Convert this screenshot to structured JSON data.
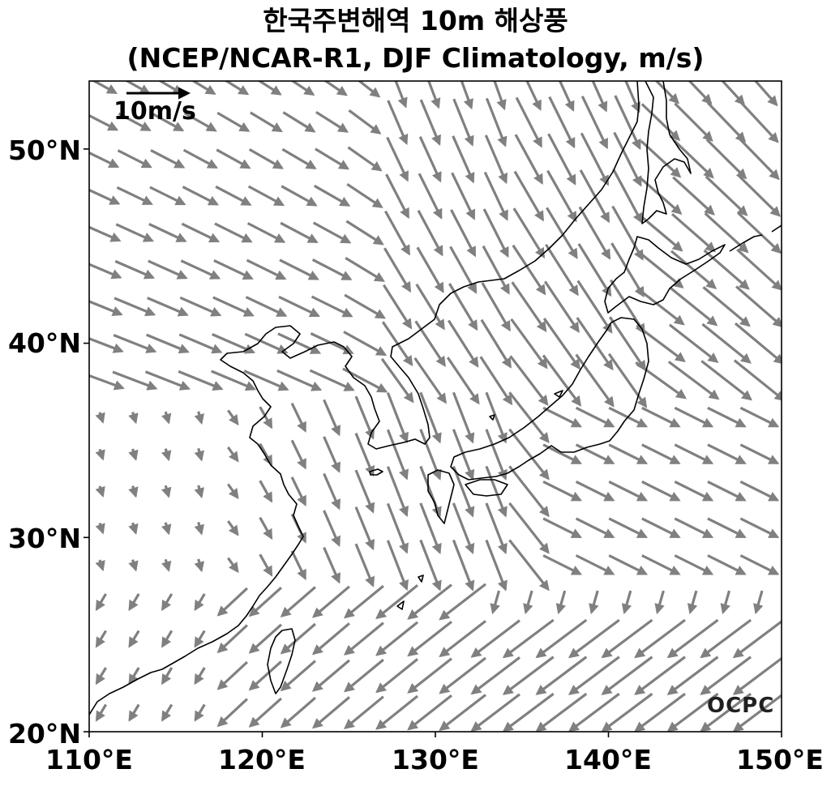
{
  "title": {
    "line1": "한국주변해역 10m 해상풍",
    "line2": "(NCEP/NCAR-R1, DJF Climatology, m/s)"
  },
  "axes": {
    "lon_min": 110,
    "lon_max": 150,
    "lat_min": 20,
    "lat_max": 53.5,
    "x_ticks": [
      "110°E",
      "120°E",
      "130°E",
      "140°E",
      "150°E"
    ],
    "y_ticks": [
      "50°N",
      "40°N",
      "30°N",
      "20°N"
    ]
  },
  "reference_vector": {
    "label": "10m/s",
    "speed": 10
  },
  "logo": "OCPC",
  "colors": {
    "arrow": "#808080",
    "coast": "#000000",
    "frame": "#000000"
  }
}
